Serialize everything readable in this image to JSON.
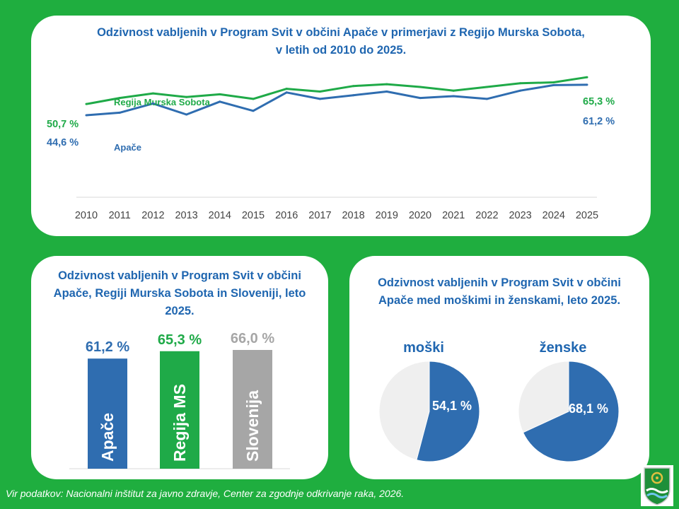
{
  "line_chart": {
    "title_line1": "Odzivnost  vabljenih  v Program  Svit v občini  Apače v primerjavi  z Regijo Murska Sobota,",
    "title_line2": "v letih od 2010 do 2025."
  },
  "bar_chart": {
    "title_line1": "Odzivnost  vabljenih  v Program  Svit v občini",
    "title_line2": "Apače, Regiji Murska Sobota  in Sloveniji,  leto",
    "title_line3": "2025."
  },
  "pie_chart": {
    "title_line1": "Odzivnost  vabljenih  v Program  Svit v občini",
    "title_line2": "Apače med moškimi  in ženskami, leto 2025."
  },
  "footer": "Vir podatkov: Nacionalni inštitut za javno zdravje, Center za zgodnje odkrivanje raka, 2026.",
  "colors": {
    "background": "#1fae3f",
    "apace": "#2f6db0",
    "regija": "#1faa48",
    "slovenija": "#a6a6a6",
    "pie_rest": "#efefef",
    "title": "#1f66b0"
  },
  "chart_data": [
    {
      "type": "line",
      "title": "Odzivnost vabljenih v Program Svit v občini Apače v primerjavi z Regijo Murska Sobota, v letih od 2010 do 2025.",
      "x": [
        "2010",
        "2011",
        "2012",
        "2013",
        "2014",
        "2015",
        "2016",
        "2017",
        "2018",
        "2019",
        "2020",
        "2021",
        "2022",
        "2023",
        "2024",
        "2025"
      ],
      "ylim": [
        0,
        100
      ],
      "series": [
        {
          "name": "Regija Murska Sobota",
          "values": [
            50.7,
            54.0,
            56.5,
            54.5,
            56.0,
            53.5,
            59.0,
            57.5,
            60.5,
            61.5,
            60.0,
            58.0,
            60.0,
            62.0,
            62.5,
            65.3
          ],
          "first_label": "50,7 %",
          "last_label": "65,3 %"
        },
        {
          "name": "Apače",
          "values": [
            44.6,
            46.0,
            51.0,
            45.0,
            52.0,
            47.0,
            57.0,
            53.5,
            55.5,
            57.5,
            54.0,
            55.0,
            53.5,
            58.0,
            61.0,
            61.2
          ],
          "first_label": "44,6 %",
          "last_label": "61,2 %"
        }
      ]
    },
    {
      "type": "bar",
      "title": "Odzivnost vabljenih v Program Svit v občini Apače, Regiji Murska Sobota in Sloveniji, leto 2025.",
      "categories": [
        "Apače",
        "Regija MS",
        "Slovenija"
      ],
      "values": [
        61.2,
        65.3,
        66.0
      ],
      "value_labels": [
        "61,2 %",
        "65,3 %",
        "66,0 %"
      ],
      "colors": [
        "#2f6db0",
        "#1faa48",
        "#a6a6a6"
      ],
      "ylim": [
        0,
        66.0
      ]
    },
    {
      "type": "pie",
      "title": "Odzivnost vabljenih v Program Svit v občini Apače med moškimi in ženskami, leto 2025.",
      "pies": [
        {
          "name": "moški",
          "value": 54.1,
          "label": "54,1 %"
        },
        {
          "name": "ženske",
          "value": 68.1,
          "label": "68,1 %"
        }
      ]
    }
  ]
}
